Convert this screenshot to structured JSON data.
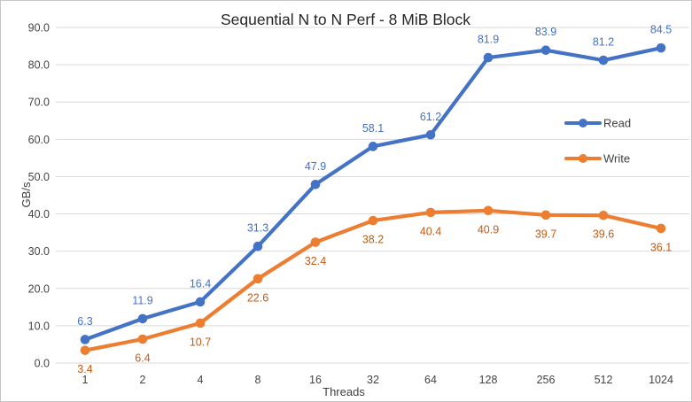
{
  "chart_data": {
    "type": "line",
    "title": "Sequential N to N Perf - 8 MiB Block",
    "xlabel": "Threads",
    "ylabel": "GB/s",
    "categories": [
      "1",
      "2",
      "4",
      "8",
      "16",
      "32",
      "64",
      "128",
      "256",
      "512",
      "1024"
    ],
    "series": [
      {
        "name": "Read",
        "color": "#4472C4",
        "label_color": "#4472C4",
        "label_position": "above",
        "values": [
          6.3,
          11.9,
          16.4,
          31.3,
          47.9,
          58.1,
          61.2,
          81.9,
          83.9,
          81.2,
          84.5
        ]
      },
      {
        "name": "Write",
        "color": "#ED7D31",
        "label_color": "#C55A11",
        "label_position": "below",
        "values": [
          3.4,
          6.4,
          10.7,
          22.6,
          32.4,
          38.2,
          40.4,
          40.9,
          39.7,
          39.6,
          36.1
        ]
      }
    ],
    "ylim": [
      0,
      90
    ],
    "ytick_step": 10,
    "ytick_format": "one_decimal",
    "grid": true,
    "gridline_color": "#D9D9D9",
    "legend_position": "right",
    "legend_entries": [
      "Read",
      "Write"
    ]
  }
}
